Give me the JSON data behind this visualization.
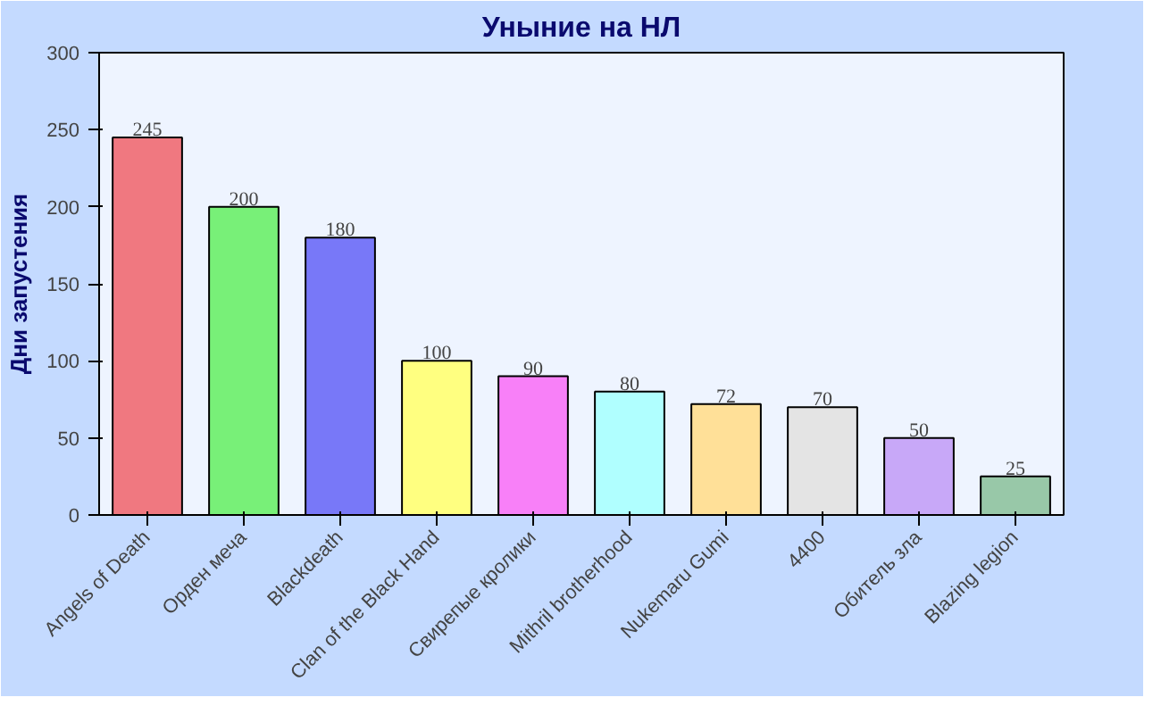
{
  "chart_data": {
    "type": "bar",
    "title": "Уныние на НЛ",
    "ylabel": "Дни запустения",
    "categories": [
      "Angels of Death",
      "Орден меча",
      "Blackdeath",
      "Clan of the Black Hand",
      "Свирепые кролики",
      "Mithril brotherhood",
      "Nukemaru Gumi",
      "4400",
      "Обитель зла",
      "Blazing legion"
    ],
    "values": [
      245,
      200,
      180,
      100,
      90,
      80,
      72,
      70,
      50,
      25
    ],
    "colors": [
      "#f07880",
      "#78f078",
      "#7878f8",
      "#ffff80",
      "#f880f8",
      "#b0ffff",
      "#ffe098",
      "#e4e4e4",
      "#c8a8f8",
      "#98c8a8"
    ],
    "ylim": [
      0,
      300
    ],
    "yticks": [
      0,
      50,
      100,
      150,
      200,
      250,
      300
    ],
    "grid": false,
    "data_labels": true
  }
}
